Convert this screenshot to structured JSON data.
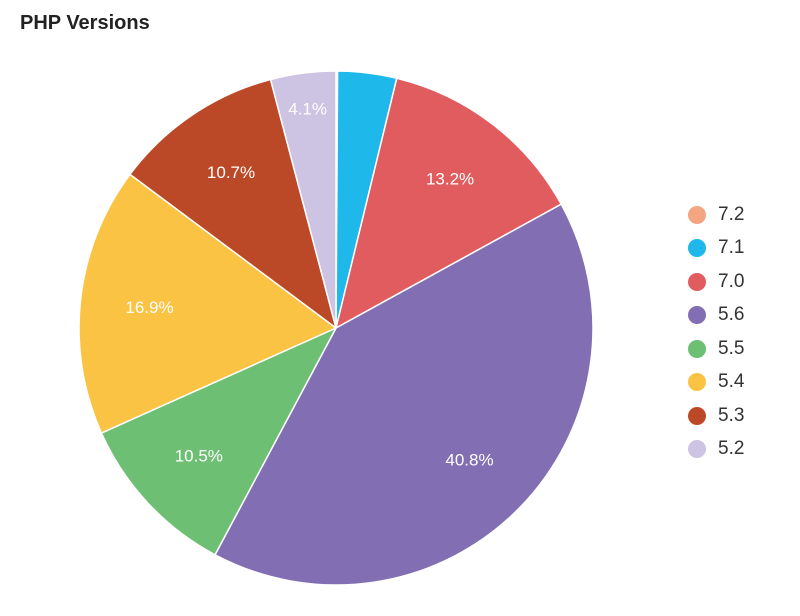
{
  "chart_data": {
    "type": "pie",
    "title": "PHP Versions",
    "legend_position": "right",
    "slices": [
      {
        "label": "7.2",
        "value": 0.1,
        "color": "#f4a582",
        "data_label": ""
      },
      {
        "label": "7.1",
        "value": 3.7,
        "color": "#1eb8ea",
        "data_label": ""
      },
      {
        "label": "7.0",
        "value": 13.2,
        "color": "#e15c5f",
        "data_label": "13.2%"
      },
      {
        "label": "5.6",
        "value": 40.8,
        "color": "#826fb3",
        "data_label": "40.8%"
      },
      {
        "label": "5.5",
        "value": 10.5,
        "color": "#6dbf74",
        "data_label": "10.5%"
      },
      {
        "label": "5.4",
        "value": 16.9,
        "color": "#fbc343",
        "data_label": "16.9%"
      },
      {
        "label": "5.3",
        "value": 10.7,
        "color": "#bb4826",
        "data_label": "10.7%"
      },
      {
        "label": "5.2",
        "value": 4.1,
        "color": "#cdc3e2",
        "data_label": "4.1%"
      }
    ]
  }
}
